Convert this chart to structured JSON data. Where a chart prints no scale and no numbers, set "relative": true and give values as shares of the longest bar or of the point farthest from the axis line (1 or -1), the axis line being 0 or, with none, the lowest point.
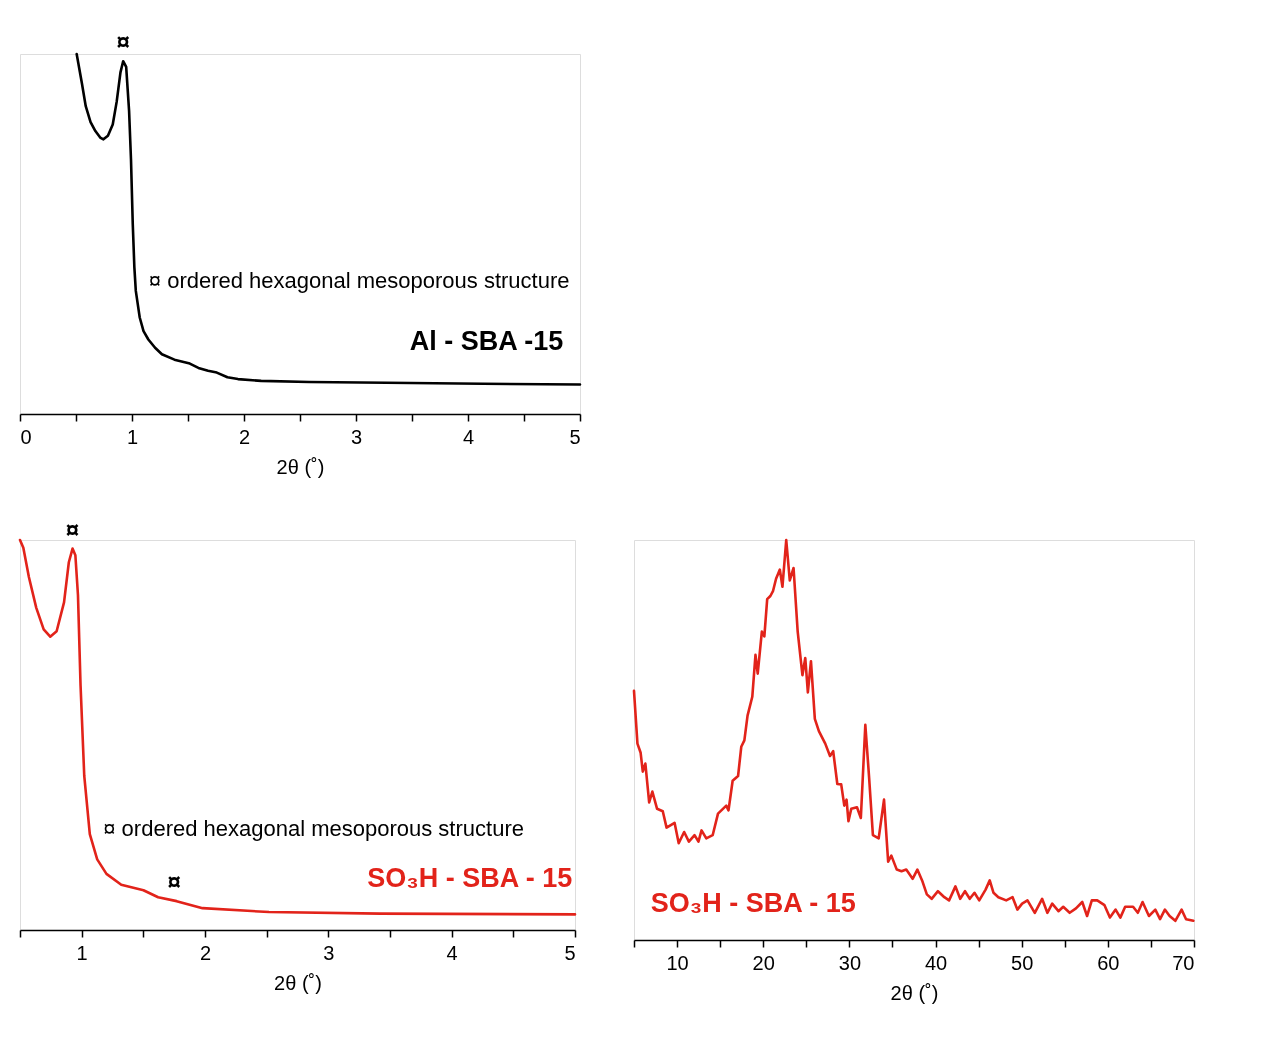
{
  "chart_data": [
    {
      "type": "line",
      "relative": true,
      "xlabel": "2θ (˚)",
      "xlim": [
        0,
        5
      ],
      "xticks": [
        0,
        {
          "value": 0.5,
          "label": null
        },
        1,
        {
          "value": 1.5,
          "label": null
        },
        2,
        {
          "value": 2.5,
          "label": null
        },
        3,
        {
          "value": 3.5,
          "label": null
        },
        4,
        {
          "value": 4.5,
          "label": null
        },
        5
      ],
      "x": [
        0.506,
        0.553,
        0.587,
        0.63,
        0.673,
        0.716,
        0.745,
        0.785,
        0.828,
        0.863,
        0.897,
        0.921,
        0.948,
        0.974,
        0.991,
        1.007,
        1.021,
        1.034,
        1.069,
        1.103,
        1.146,
        1.206,
        1.267,
        1.379,
        1.516,
        1.593,
        1.679,
        1.757,
        1.852,
        1.946,
        2.153,
        2.583,
        3.271,
        4.131,
        5.0
      ],
      "series": [
        {
          "name": "Al - SBA -15",
          "color": "#000000",
          "values": [
            1.0,
            0.918,
            0.855,
            0.811,
            0.786,
            0.768,
            0.763,
            0.773,
            0.804,
            0.867,
            0.949,
            0.98,
            0.964,
            0.842,
            0.707,
            0.526,
            0.408,
            0.342,
            0.268,
            0.23,
            0.207,
            0.184,
            0.166,
            0.151,
            0.14,
            0.128,
            0.12,
            0.115,
            0.102,
            0.097,
            0.092,
            0.089,
            0.087,
            0.084,
            0.082
          ]
        }
      ],
      "annotations": [
        {
          "text": "¤",
          "x": 0.921,
          "y": 0.98
        },
        "¤ ordered hexagonal mesoporous structure"
      ]
    },
    {
      "type": "line",
      "relative": true,
      "xlabel": "2θ (˚)",
      "xlim": [
        0.5,
        5
      ],
      "xticks": [
        {
          "value": 0.5,
          "label": null
        },
        1,
        {
          "value": 1.5,
          "label": null
        },
        2,
        {
          "value": 2.5,
          "label": null
        },
        3,
        {
          "value": 3.5,
          "label": null
        },
        4,
        {
          "value": 4.5,
          "label": null
        },
        5
      ],
      "x": [
        0.5,
        0.527,
        0.572,
        0.632,
        0.692,
        0.745,
        0.797,
        0.857,
        0.896,
        0.926,
        0.949,
        0.97,
        0.991,
        1.021,
        1.066,
        1.126,
        1.201,
        1.321,
        1.501,
        1.62,
        1.77,
        1.98,
        2.519,
        3.418,
        5.0
      ],
      "series": [
        {
          "name": "SO₃H - SBA - 15",
          "color": "#e2231a",
          "values": [
            1.0,
            0.98,
            0.905,
            0.826,
            0.771,
            0.752,
            0.766,
            0.84,
            0.943,
            0.978,
            0.961,
            0.859,
            0.627,
            0.395,
            0.246,
            0.181,
            0.144,
            0.116,
            0.102,
            0.084,
            0.074,
            0.056,
            0.046,
            0.042,
            0.04
          ]
        }
      ],
      "annotations": [
        {
          "text": "¤",
          "x": 0.926,
          "y": 0.978
        },
        {
          "text": "¤",
          "x": 1.75,
          "y": 0.075
        },
        "¤ ordered hexagonal mesoporous structure"
      ]
    },
    {
      "type": "line",
      "relative": true,
      "xlabel": "2θ (˚)",
      "xlim": [
        5,
        70
      ],
      "xticks": [
        {
          "value": 5,
          "label": null
        },
        10,
        {
          "value": 15,
          "label": null
        },
        20,
        {
          "value": 25,
          "label": null
        },
        30,
        {
          "value": 35,
          "label": null
        },
        40,
        {
          "value": 45,
          "label": null
        },
        50,
        {
          "value": 55,
          "label": null
        },
        60,
        {
          "value": 65,
          "label": null
        },
        70
      ],
      "x": [
        5.0,
        5.4,
        5.77,
        6.02,
        6.32,
        6.76,
        7.13,
        7.68,
        8.34,
        8.78,
        9.71,
        10.19,
        10.82,
        11.37,
        12.03,
        12.48,
        12.84,
        13.39,
        14.13,
        14.75,
        15.71,
        15.97,
        16.45,
        17.08,
        17.45,
        17.81,
        18.18,
        18.73,
        19.1,
        19.36,
        19.84,
        20.13,
        20.46,
        20.83,
        21.13,
        21.49,
        21.93,
        22.23,
        22.67,
        23.08,
        23.52,
        24.0,
        24.55,
        24.88,
        25.18,
        25.54,
        25.99,
        26.46,
        27.2,
        27.75,
        28.12,
        28.6,
        29.05,
        29.41,
        29.67,
        29.89,
        30.22,
        30.88,
        31.33,
        31.85,
        32.29,
        32.73,
        33.4,
        34.02,
        34.5,
        34.87,
        35.5,
        36.05,
        36.6,
        37.34,
        37.89,
        38.44,
        38.99,
        39.55,
        40.28,
        41.02,
        41.57,
        42.31,
        42.86,
        43.42,
        43.97,
        44.52,
        45.07,
        45.81,
        46.29,
        46.73,
        47.29,
        48.2,
        48.94,
        49.5,
        50.05,
        50.67,
        51.52,
        52.37,
        52.98,
        53.54,
        54.27,
        54.82,
        55.57,
        56.3,
        57.03,
        57.59,
        58.14,
        58.77,
        59.61,
        60.24,
        60.9,
        61.45,
        62.01,
        62.93,
        63.48,
        64.03,
        64.77,
        65.51,
        66.06,
        66.62,
        67.17,
        67.83,
        68.56,
        69.08,
        69.93
      ],
      "series": [
        {
          "name": "SO₃H - SBA - 15",
          "color": "#e2231a",
          "values": [
            0.623,
            0.491,
            0.468,
            0.421,
            0.441,
            0.344,
            0.371,
            0.328,
            0.322,
            0.281,
            0.293,
            0.242,
            0.27,
            0.246,
            0.262,
            0.246,
            0.274,
            0.254,
            0.262,
            0.316,
            0.336,
            0.324,
            0.398,
            0.41,
            0.483,
            0.499,
            0.561,
            0.608,
            0.713,
            0.666,
            0.771,
            0.759,
            0.852,
            0.86,
            0.872,
            0.903,
            0.926,
            0.883,
            1.0,
            0.899,
            0.93,
            0.771,
            0.662,
            0.705,
            0.619,
            0.697,
            0.553,
            0.522,
            0.491,
            0.46,
            0.472,
            0.39,
            0.389,
            0.336,
            0.351,
            0.297,
            0.328,
            0.332,
            0.305,
            0.538,
            0.406,
            0.262,
            0.254,
            0.351,
            0.196,
            0.211,
            0.176,
            0.172,
            0.176,
            0.153,
            0.176,
            0.149,
            0.114,
            0.103,
            0.122,
            0.107,
            0.099,
            0.134,
            0.103,
            0.122,
            0.103,
            0.118,
            0.099,
            0.126,
            0.149,
            0.118,
            0.107,
            0.099,
            0.107,
            0.076,
            0.091,
            0.099,
            0.068,
            0.103,
            0.068,
            0.091,
            0.072,
            0.083,
            0.068,
            0.079,
            0.095,
            0.06,
            0.099,
            0.099,
            0.087,
            0.056,
            0.076,
            0.056,
            0.083,
            0.083,
            0.068,
            0.095,
            0.06,
            0.076,
            0.052,
            0.076,
            0.06,
            0.048,
            0.076,
            0.052,
            0.048
          ]
        }
      ]
    }
  ]
}
